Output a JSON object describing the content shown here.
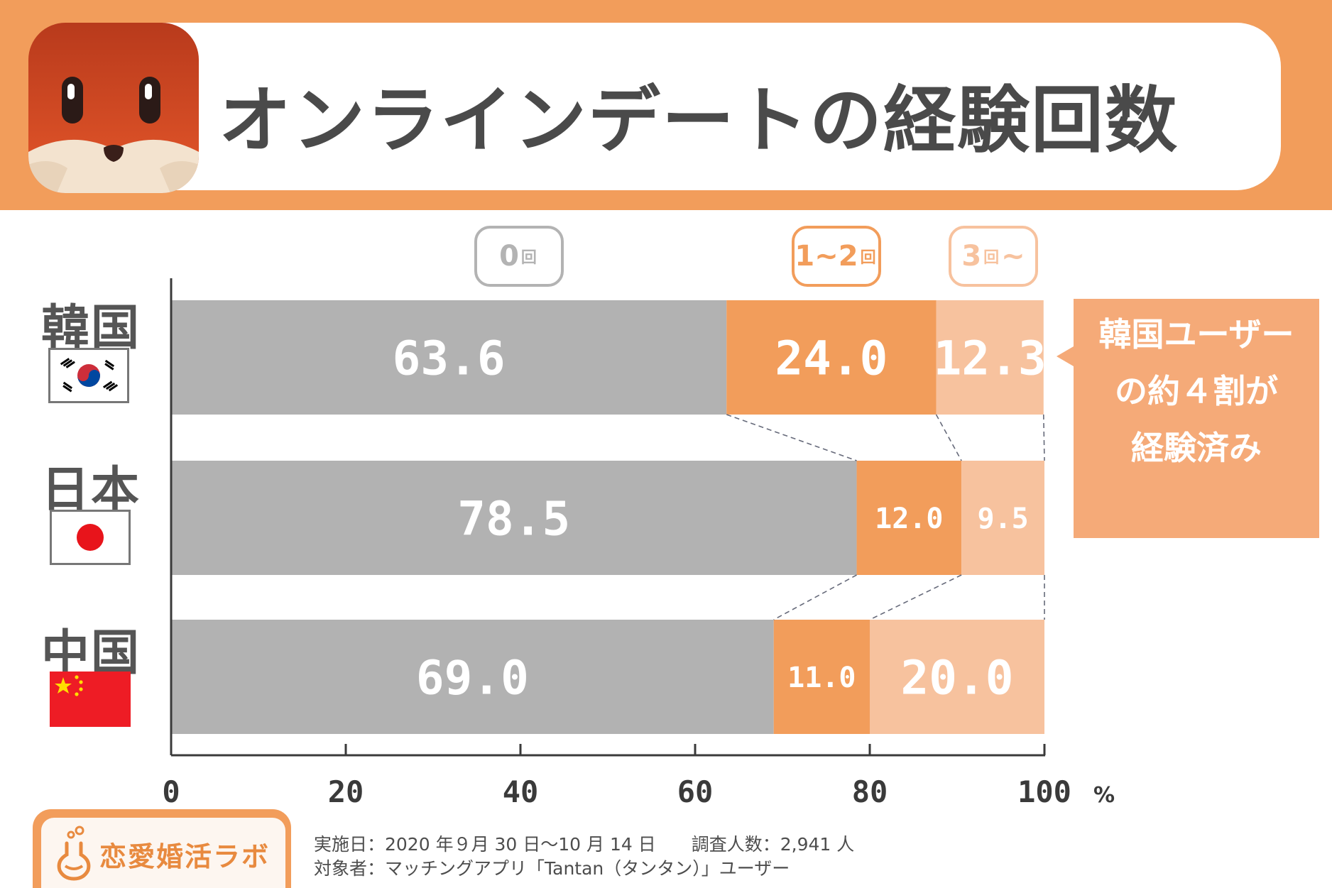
{
  "header": {
    "title": "オンラインデートの経験回数"
  },
  "legend": {
    "items": [
      {
        "number": "0",
        "unit": "回",
        "suffix": "",
        "color": "#b3b3b3"
      },
      {
        "number": "1~2",
        "unit": "回",
        "suffix": "",
        "color": "#f29d5b"
      },
      {
        "number": "3",
        "unit": "回",
        "suffix": "~",
        "color": "#f7c29e"
      }
    ]
  },
  "countries": [
    {
      "name": "韓国",
      "flag": "south-korea-flag"
    },
    {
      "name": "日本",
      "flag": "japan-flag"
    },
    {
      "name": "中国",
      "flag": "china-flag"
    }
  ],
  "callout": {
    "lines": [
      "韓国ユーザー",
      "の約４割が",
      "経験済み"
    ]
  },
  "chart_data": {
    "type": "bar",
    "orientation": "horizontal",
    "stacked": true,
    "categories": [
      "韓国",
      "日本",
      "中国"
    ],
    "series": [
      {
        "name": "0回",
        "values": [
          63.6,
          78.5,
          69.0
        ],
        "color": "#b2b2b2"
      },
      {
        "name": "1~2回",
        "values": [
          24.0,
          12.0,
          11.0
        ],
        "color": "#f29d5b"
      },
      {
        "name": "3回~",
        "values": [
          12.3,
          9.5,
          20.0
        ],
        "color": "#f7c29e"
      }
    ],
    "value_labels": [
      [
        "63.6",
        "24.0",
        "12.3"
      ],
      [
        "78.5",
        "12.0",
        "9.5"
      ],
      [
        "69.0",
        "11.0",
        "20.0"
      ]
    ],
    "xlim": [
      0,
      100
    ],
    "xticks": [
      "0",
      "20",
      "40",
      "60",
      "80",
      "100"
    ],
    "xunit": "%",
    "legend_position": "top",
    "grid": false
  },
  "footer": {
    "brand": "恋愛婚活ラボ",
    "note_line1": "実施日：2020 年９月 30 日〜10 月 14 日　　調査人数：2,941 人",
    "note_line2": "対象者：マッチングアプリ「Tantan（タンタン）」ユーザー"
  }
}
